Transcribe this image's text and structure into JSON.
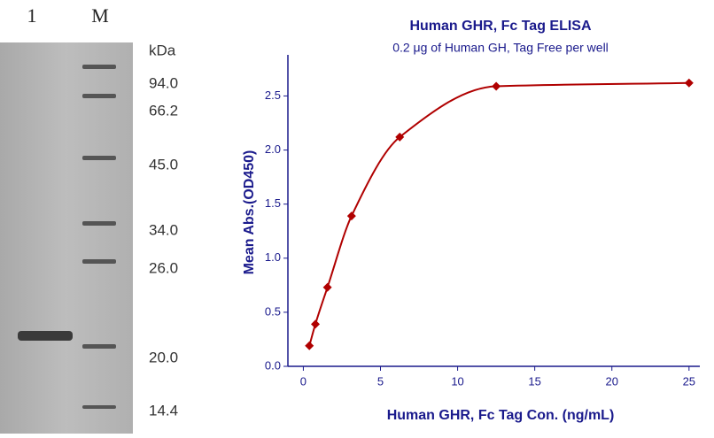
{
  "gel": {
    "lane_labels": [
      "1",
      "M"
    ],
    "unit": "kDa",
    "markers": [
      "94.0",
      "66.2",
      "45.0",
      "34.0",
      "26.0",
      "20.0",
      "14.4"
    ]
  },
  "chart_data": {
    "type": "scatter",
    "title": "Human GHR, Fc Tag ELISA",
    "subtitle": "0.2 μg of Human GH, Tag Free per well",
    "x_label": "Human GHR, Fc Tag Con. (ng/mL)",
    "y_label": "Mean Abs.(OD450)",
    "x": [
      0.391,
      0.781,
      1.563,
      3.125,
      6.25,
      12.5,
      25
    ],
    "series": [
      {
        "color": "#b00000",
        "values": [
          0.19,
          0.39,
          0.73,
          1.39,
          2.12,
          2.59,
          2.62
        ]
      }
    ],
    "fit_line": true,
    "xlim": [
      -1,
      25.7
    ],
    "ylim": [
      0,
      2.88
    ],
    "xticks": [
      0,
      5,
      10,
      15,
      20,
      25
    ],
    "yticks": [
      {
        "value": 0,
        "label": "0.0"
      },
      0.5,
      {
        "value": 1,
        "label": "1.0"
      },
      1.5,
      {
        "value": 2,
        "label": "2.0"
      },
      2.5
    ]
  }
}
